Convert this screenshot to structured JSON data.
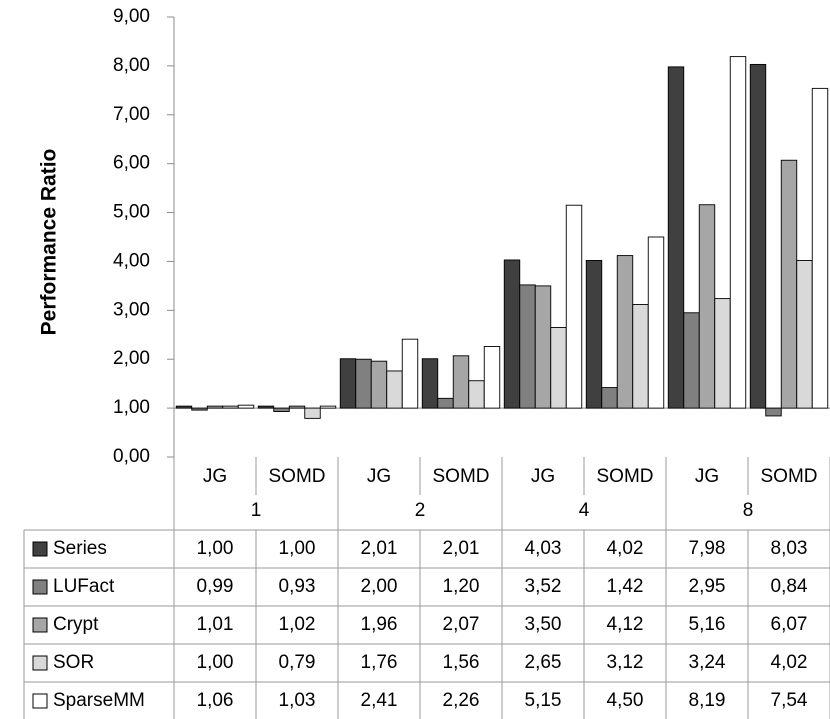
{
  "chart_data": {
    "type": "bar",
    "title": "",
    "ylabel": "Performance Ratio",
    "xlabel": "",
    "ylim": [
      0,
      9
    ],
    "yticks": [
      "0,00",
      "1,00",
      "2,00",
      "3,00",
      "4,00",
      "5,00",
      "6,00",
      "7,00",
      "8,00",
      "9,00"
    ],
    "baseline": 1,
    "groups": [
      "1",
      "2",
      "4",
      "8"
    ],
    "subcategories": [
      "JG",
      "SOMD",
      "JG",
      "SOMD",
      "JG",
      "SOMD",
      "JG",
      "SOMD"
    ],
    "series": [
      {
        "name": "Series",
        "color": "#404040",
        "values": [
          1.0,
          1.0,
          2.01,
          2.01,
          4.03,
          4.02,
          7.98,
          8.03
        ],
        "labels": [
          "1,00",
          "1,00",
          "2,01",
          "2,01",
          "4,03",
          "4,02",
          "7,98",
          "8,03"
        ]
      },
      {
        "name": "LUFact",
        "color": "#808080",
        "values": [
          0.99,
          0.93,
          2.0,
          1.2,
          3.52,
          1.42,
          2.95,
          0.84
        ],
        "labels": [
          "0,99",
          "0,93",
          "2,00",
          "1,20",
          "3,52",
          "1,42",
          "2,95",
          "0,84"
        ]
      },
      {
        "name": "Crypt",
        "color": "#a6a6a6",
        "values": [
          1.01,
          1.02,
          1.96,
          2.07,
          3.5,
          4.12,
          5.16,
          6.07
        ],
        "labels": [
          "1,01",
          "1,02",
          "1,96",
          "2,07",
          "3,50",
          "4,12",
          "5,16",
          "6,07"
        ]
      },
      {
        "name": "SOR",
        "color": "#d9d9d9",
        "values": [
          1.0,
          0.79,
          1.76,
          1.56,
          2.65,
          3.12,
          3.24,
          4.02
        ],
        "labels": [
          "1,00",
          "0,79",
          "1,76",
          "1,56",
          "2,65",
          "3,12",
          "3,24",
          "4,02"
        ]
      },
      {
        "name": "SparseMM",
        "color": "#ffffff",
        "values": [
          1.06,
          1.03,
          2.41,
          2.26,
          5.15,
          4.5,
          8.19,
          7.54
        ],
        "labels": [
          "1,06",
          "1,03",
          "2,41",
          "2,26",
          "5,15",
          "4,50",
          "8,19",
          "7,54"
        ]
      }
    ]
  }
}
